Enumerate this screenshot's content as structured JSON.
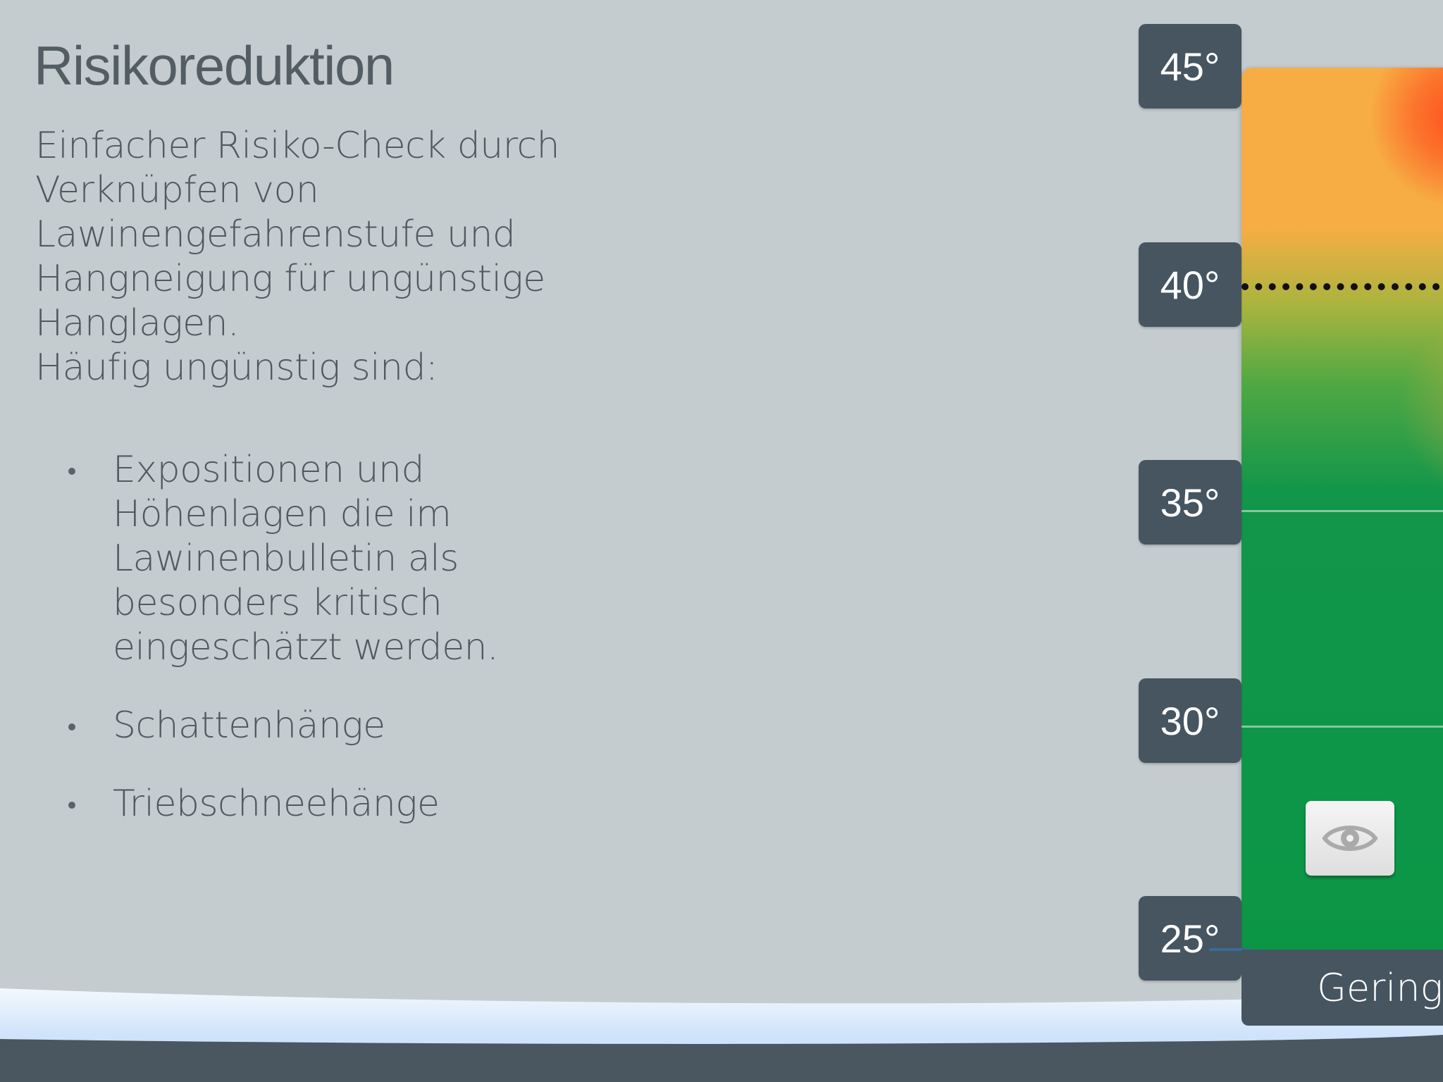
{
  "page": {
    "title": "Risikoreduktion",
    "description": "Einfacher Risiko-Check durch Verknüpfen von Lawinengefahrenstufe und Hangneigung für ungünstige Hanglagen.",
    "subheading": "Häufig ungünstig sind:",
    "bullets": [
      "Expositionen und Höhenlagen die im Lawinenbulletin als besonders kritisch eingeschätzt werden.",
      "Schattenhänge",
      "Triebschneehänge"
    ]
  },
  "chart": {
    "slope_ticks": [
      "45°",
      "40°",
      "35°",
      "30°",
      "25°"
    ],
    "danger_level_label": "Gering",
    "eye_button_icon": "eye-icon",
    "colors": {
      "tick_background": "#465560",
      "green": "#0b9646",
      "orange": "#f7ad44",
      "red": "#ff4e1d"
    }
  }
}
